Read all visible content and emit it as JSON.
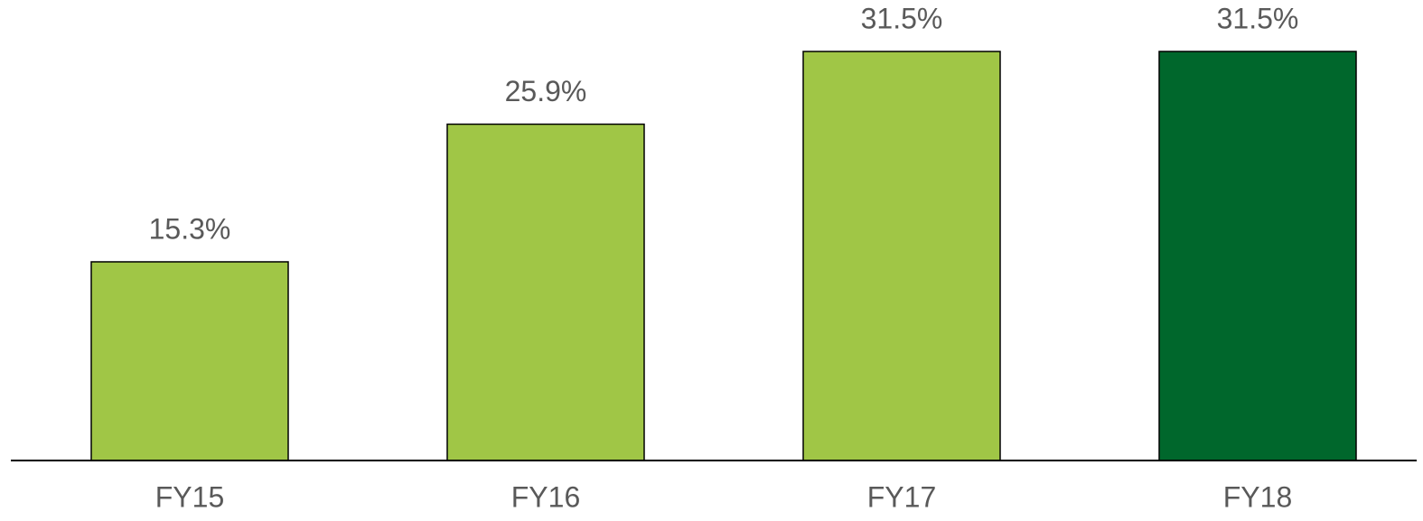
{
  "chart_data": {
    "type": "bar",
    "categories": [
      "FY15",
      "FY16",
      "FY17",
      "FY18"
    ],
    "values": [
      15.3,
      25.9,
      31.5,
      31.5
    ],
    "value_labels": [
      "15.3%",
      "25.9%",
      "31.5%",
      "31.5%"
    ],
    "colors": [
      "#a0c646",
      "#a0c646",
      "#a0c646",
      "#00672c"
    ]
  }
}
